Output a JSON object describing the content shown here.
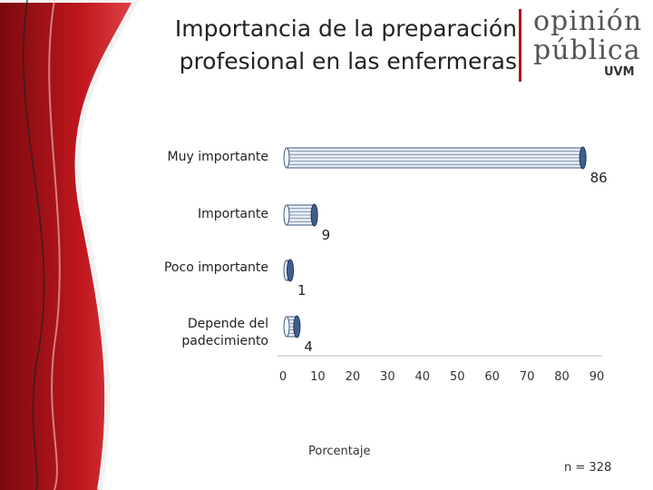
{
  "slide": {
    "title_line1": "Importancia de la preparación",
    "title_line2": "profesional en las enfermeras",
    "logo_line1": "opinión",
    "logo_line2": "pública",
    "logo_line3": "UVM",
    "sample_note": "n = 328"
  },
  "colors": {
    "brand_red": "#b3121a",
    "bar_fill": "#e9edf3",
    "bar_stroke": "#3b5b87",
    "bar_cap": "#3f5f8e"
  },
  "chart_data": {
    "type": "bar",
    "orientation": "horizontal",
    "categories": [
      "Muy importante",
      "Importante",
      "Poco importante",
      "Depende del padecimiento"
    ],
    "values": [
      86,
      9,
      1,
      4
    ],
    "value_labels": [
      "86",
      "9",
      "1",
      "4"
    ],
    "xlabel": "Porcentaje",
    "ylabel": "",
    "xlim": [
      0,
      90
    ],
    "xticks": [
      0,
      10,
      20,
      30,
      40,
      50,
      60,
      70,
      80,
      90
    ],
    "grid": false
  }
}
